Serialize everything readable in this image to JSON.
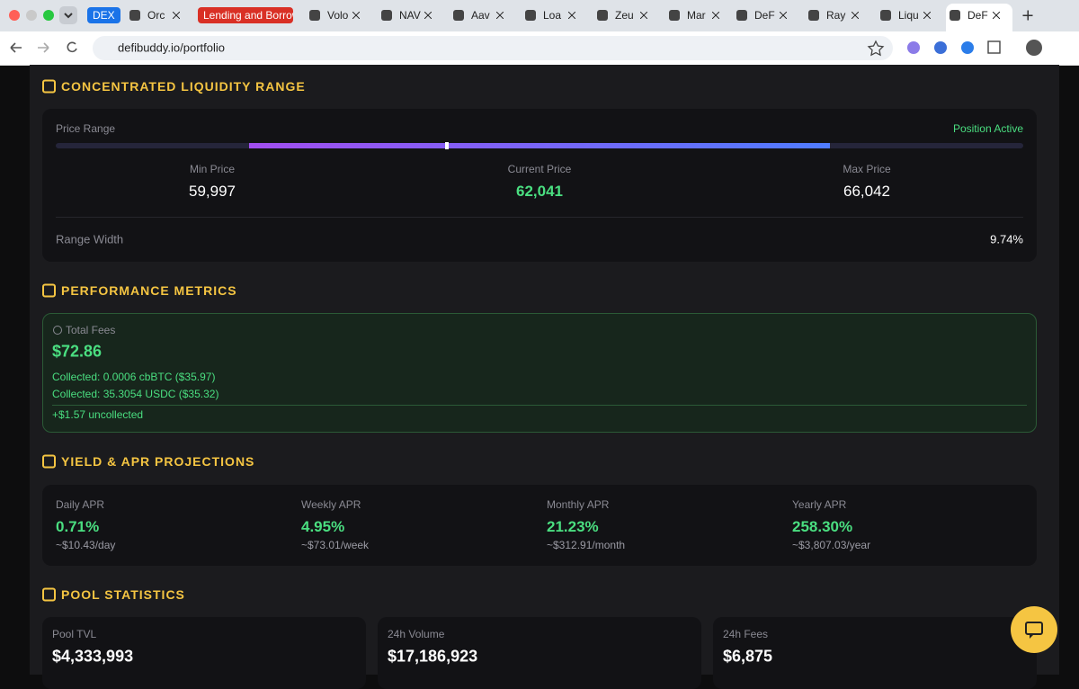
{
  "browser": {
    "tabs": [
      "DEX",
      "Orc",
      "Lending and Borrowi",
      "Volo",
      "NAV",
      "Aav",
      "Loa",
      "Zeu",
      "Mar",
      "DeF",
      "Ray",
      "Liqu",
      "DeF"
    ],
    "url": "defibuddy.io/portfolio"
  },
  "range": {
    "title": "CONCENTRATED LIQUIDITY RANGE",
    "label": "Price Range",
    "status": "Position Active",
    "prices": [
      {
        "label": "Min Price",
        "value": "59,997"
      },
      {
        "label": "Current Price",
        "value": "62,041"
      },
      {
        "label": "Max Price",
        "value": "66,042"
      }
    ],
    "width_label": "Range Width",
    "width_value": "9.74%"
  },
  "performance": {
    "title": "PERFORMANCE METRICS",
    "fees_label": "Total Fees",
    "fees_value": "$72.86",
    "collected": [
      "Collected: 0.0006 cbBTC ($35.97)",
      "Collected: 35.3054 USDC ($35.32)"
    ],
    "uncollected": "+$1.57 uncollected"
  },
  "yield": {
    "title": "YIELD & APR PROJECTIONS",
    "items": [
      {
        "label": "Daily APR",
        "value": "0.71%",
        "sub": "~$10.43/day"
      },
      {
        "label": "Weekly APR",
        "value": "4.95%",
        "sub": "~$73.01/week"
      },
      {
        "label": "Monthly APR",
        "value": "21.23%",
        "sub": "~$312.91/month"
      },
      {
        "label": "Yearly APR",
        "value": "258.30%",
        "sub": "~$3,807.03/year"
      }
    ]
  },
  "pool": {
    "title": "POOL STATISTICS",
    "items": [
      {
        "label": "Pool TVL",
        "value": "$4,333,993"
      },
      {
        "label": "24h Volume",
        "value": "$17,186,923"
      },
      {
        "label": "24h Fees",
        "value": "$6,875"
      }
    ]
  }
}
